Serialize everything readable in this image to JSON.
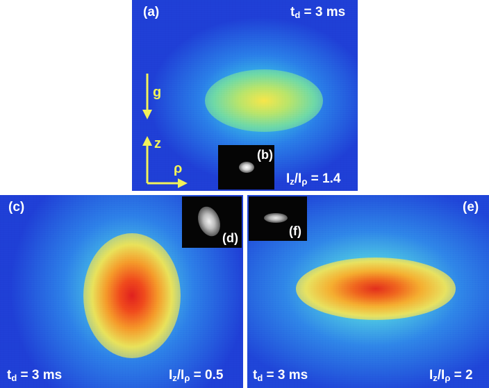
{
  "panel_a": {
    "label": "(a)",
    "time_prefix": "t",
    "time_sub": "d",
    "time_value": " = 3 ms",
    "ratio_I1": "I",
    "ratio_z": "z",
    "ratio_slash": "/I",
    "ratio_rho": "ρ",
    "ratio_value": " = 1.4",
    "gravity_label": "g",
    "z_axis_label": "z",
    "rho_axis_label": "ρ",
    "inset_label": "(b)"
  },
  "panel_c": {
    "label": "(c)",
    "time_prefix": "t",
    "time_sub": "d",
    "time_value": " = 3 ms",
    "ratio_I1": "I",
    "ratio_z": "z",
    "ratio_slash": "/I",
    "ratio_rho": "ρ",
    "ratio_value": " = 0.5",
    "inset_label": "(d)"
  },
  "panel_e": {
    "label": "(e)",
    "time_prefix": "t",
    "time_sub": "d",
    "time_value": " = 3 ms",
    "ratio_I1": "I",
    "ratio_z": "z",
    "ratio_slash": "/I",
    "ratio_rho": "ρ",
    "ratio_value": " = 2",
    "inset_label": "(f)"
  },
  "colors": {
    "background_blue": "#1f3fd6",
    "arrow_yellow": "#f2f25a",
    "text": "#ffffff"
  },
  "icons": {
    "gravity_arrow": "down-arrow-icon",
    "z_arrow": "up-arrow-icon",
    "rho_arrow": "right-arrow-icon"
  }
}
